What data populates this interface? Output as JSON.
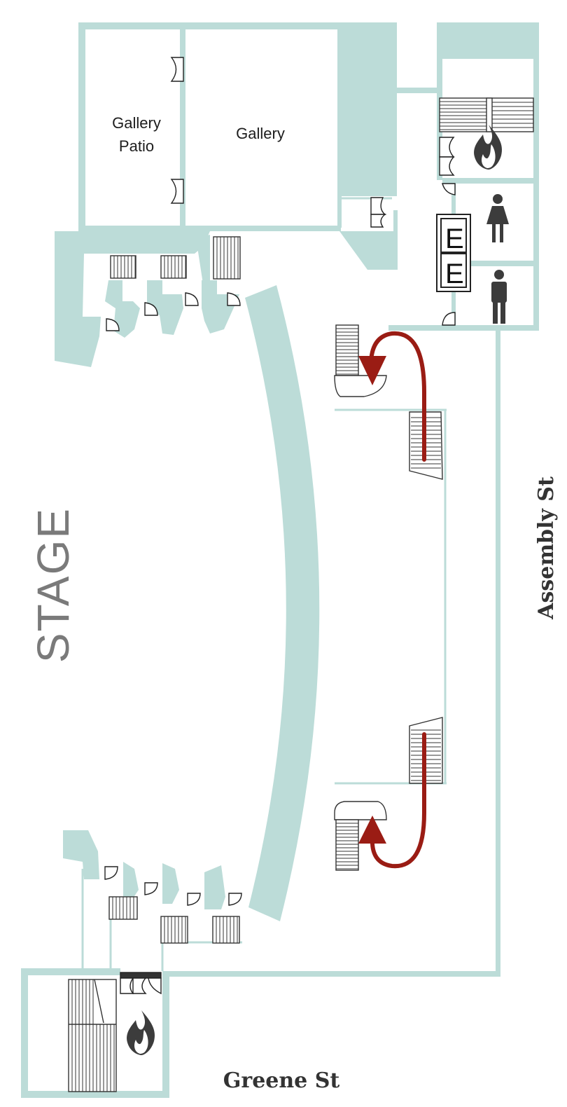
{
  "labels": {
    "gallery_patio_line1": "Gallery",
    "gallery_patio_line2": "Patio",
    "gallery": "Gallery",
    "stage": "STAGE",
    "street_east": "Assembly St",
    "street_south": "Greene St",
    "elevator_1": "E",
    "elevator_2": "E"
  },
  "icons": {
    "fire_stairs": "fire-icon",
    "womens_restroom": "woman-restroom-icon",
    "mens_restroom": "man-restroom-icon",
    "route_arrows": "route-arrow-icon"
  },
  "colors": {
    "wall": "#bcdcd8",
    "route": "#9a1c14",
    "icon": "#3c3c3c",
    "stage_text": "#7a7a7a"
  }
}
